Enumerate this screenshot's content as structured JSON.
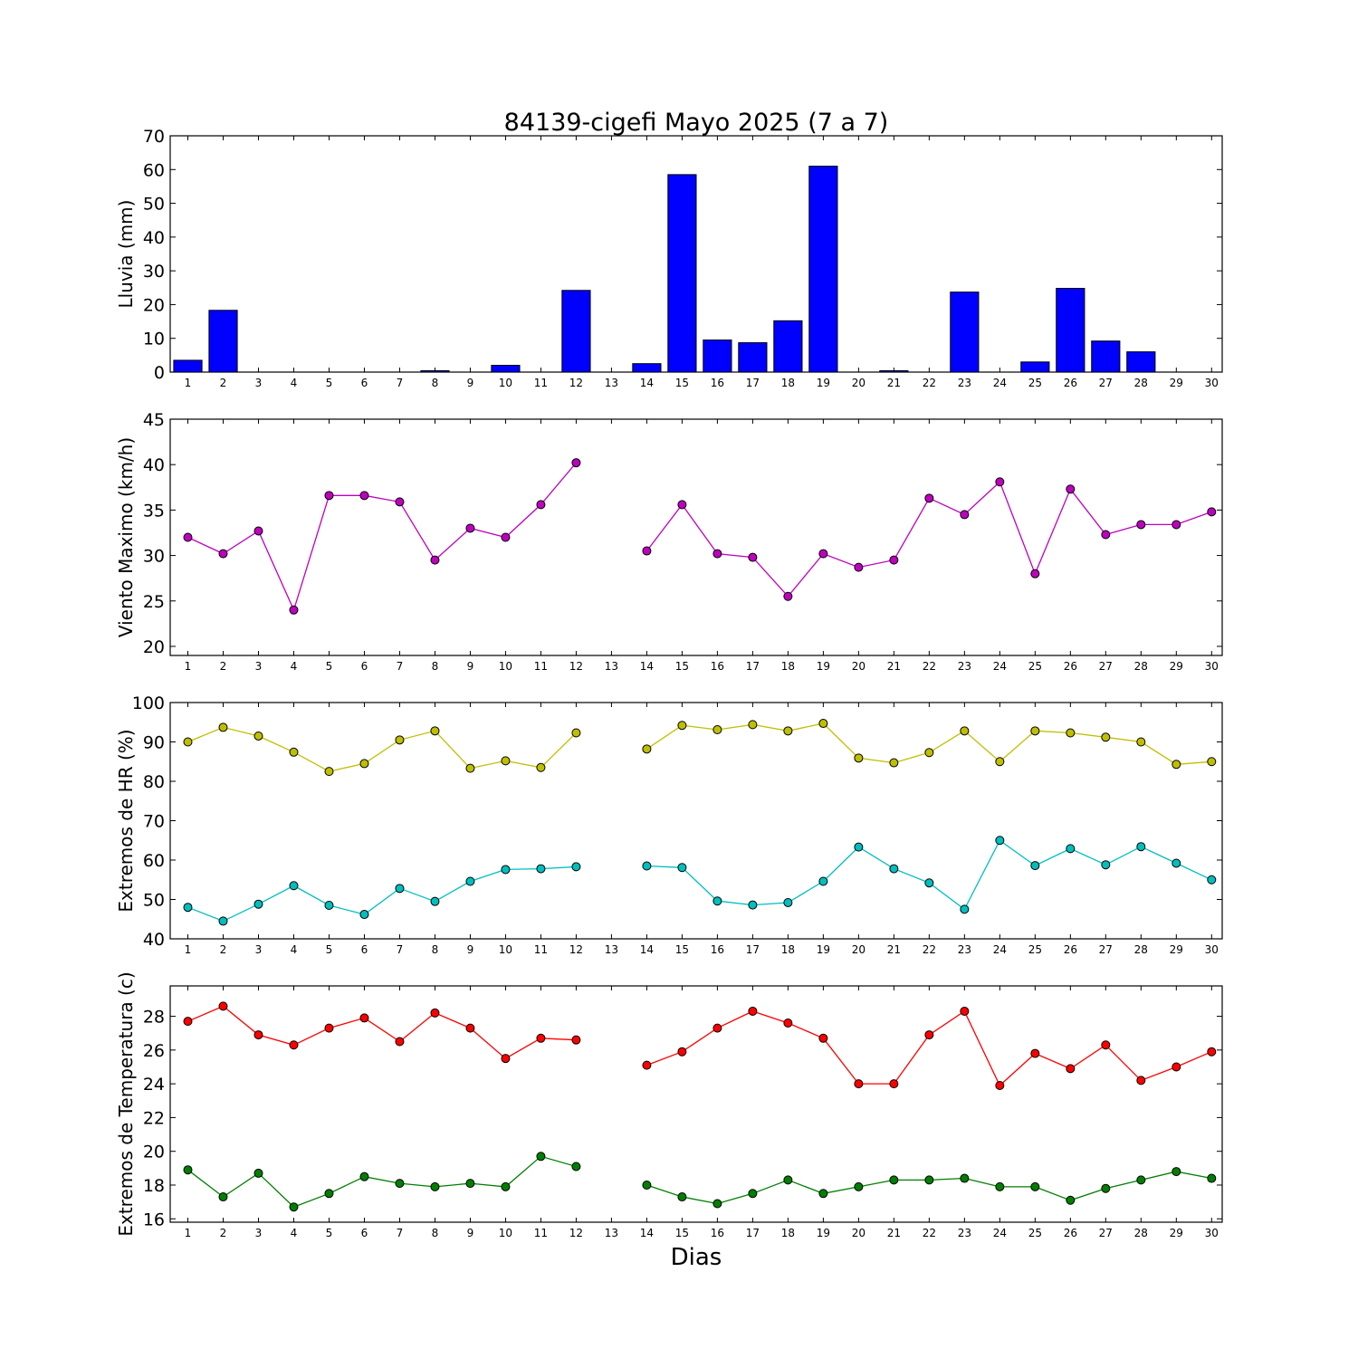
{
  "chart_data": {
    "title": "84139-cigefi Mayo 2025  (7 a 7)",
    "xlabel": "Dias",
    "days": [
      1,
      2,
      3,
      4,
      5,
      6,
      7,
      8,
      9,
      10,
      11,
      12,
      13,
      14,
      15,
      16,
      17,
      18,
      19,
      20,
      21,
      22,
      23,
      24,
      25,
      26,
      27,
      28,
      29,
      30
    ],
    "panels": [
      {
        "type": "bar",
        "ylabel": "Lluvia (mm)",
        "ylim": [
          0,
          70
        ],
        "yticks": [
          0,
          10,
          20,
          30,
          40,
          50,
          60,
          70
        ],
        "series": [
          {
            "color": "#0000ff",
            "values": [
              3.5,
              18.3,
              0,
              0,
              0,
              0,
              0,
              0.4,
              0,
              2.0,
              0,
              24.2,
              0,
              2.5,
              58.5,
              9.5,
              8.7,
              15.2,
              61.0,
              0,
              0.4,
              0,
              23.7,
              0,
              3.0,
              24.8,
              9.2,
              6.0,
              0,
              0
            ]
          }
        ]
      },
      {
        "type": "line",
        "ylabel": "Viento Maximo (km/h)",
        "ylim": [
          19,
          45
        ],
        "yticks": [
          20,
          25,
          30,
          35,
          40,
          45
        ],
        "series": [
          {
            "color": "#bf00bf",
            "values": [
              32.0,
              30.2,
              32.7,
              24.0,
              36.6,
              36.6,
              35.9,
              29.5,
              33.0,
              32.0,
              35.6,
              40.2,
              null,
              30.5,
              35.6,
              30.2,
              29.8,
              25.5,
              30.2,
              28.7,
              29.5,
              36.3,
              34.5,
              38.1,
              28.0,
              37.3,
              32.3,
              33.4,
              33.4,
              34.8
            ]
          }
        ]
      },
      {
        "type": "line",
        "ylabel": "Extremos de HR (%)",
        "ylim": [
          40,
          100
        ],
        "yticks": [
          40,
          50,
          60,
          70,
          80,
          90,
          100
        ],
        "series": [
          {
            "color": "#bfbf00",
            "values": [
              90.0,
              93.7,
              91.5,
              87.4,
              82.5,
              84.5,
              90.5,
              92.8,
              83.3,
              85.2,
              83.5,
              92.3,
              null,
              88.2,
              94.2,
              93.1,
              94.4,
              92.8,
              94.7,
              85.9,
              84.7,
              87.3,
              92.8,
              85.0,
              92.8,
              92.3,
              91.2,
              90.0,
              84.3,
              85.0
            ]
          },
          {
            "color": "#00bfbf",
            "values": [
              48.0,
              44.5,
              48.8,
              53.5,
              48.5,
              46.2,
              52.8,
              49.5,
              54.6,
              57.6,
              57.8,
              58.3,
              null,
              58.5,
              58.1,
              49.6,
              48.6,
              49.2,
              54.6,
              63.3,
              57.8,
              54.2,
              47.5,
              65.0,
              58.6,
              62.9,
              58.8,
              63.4,
              59.2,
              55.0
            ]
          }
        ]
      },
      {
        "type": "line",
        "ylabel": "Extremos de Temperatura (c)",
        "ylim": [
          15.8,
          29.8
        ],
        "yticks": [
          16,
          18,
          20,
          22,
          24,
          26,
          28
        ],
        "series": [
          {
            "color": "#ff0000",
            "values": [
              27.7,
              28.6,
              26.9,
              26.3,
              27.3,
              27.9,
              26.5,
              28.2,
              27.3,
              25.5,
              26.7,
              26.6,
              null,
              25.1,
              25.9,
              27.3,
              28.3,
              27.6,
              26.7,
              24.0,
              24.0,
              26.9,
              28.3,
              23.9,
              25.8,
              24.9,
              26.3,
              24.2,
              25.0,
              25.9
            ]
          },
          {
            "color": "#007f00",
            "values": [
              18.9,
              17.3,
              18.7,
              16.7,
              17.5,
              18.5,
              18.1,
              17.9,
              18.1,
              17.9,
              19.7,
              19.1,
              null,
              18.0,
              17.3,
              16.9,
              17.5,
              18.3,
              17.5,
              17.9,
              18.3,
              18.3,
              18.4,
              17.9,
              17.9,
              17.1,
              17.8,
              18.3,
              18.8,
              18.4
            ]
          }
        ]
      }
    ]
  }
}
